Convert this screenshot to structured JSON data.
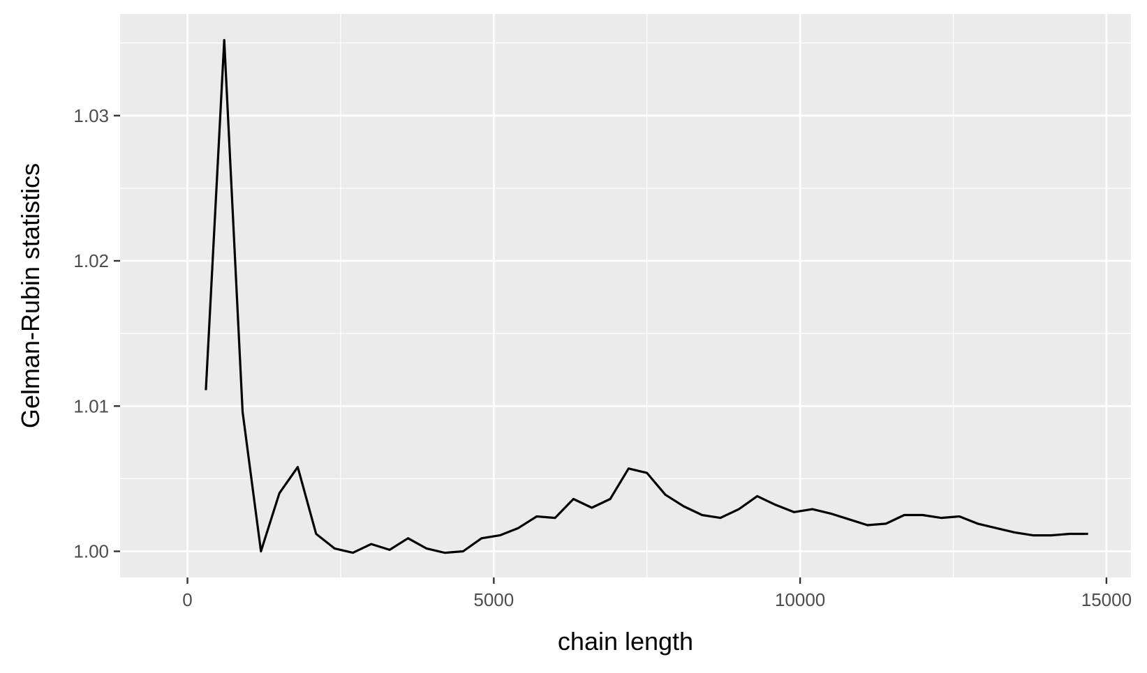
{
  "chart_data": {
    "type": "line",
    "title": "",
    "xlabel": "chain length",
    "ylabel": "Gelman-Rubin statistics",
    "xlim": [
      -1100,
      15400
    ],
    "ylim": [
      0.9982,
      1.037
    ],
    "x_ticks": [
      0,
      5000,
      10000,
      15000
    ],
    "x_tick_labels": [
      "0",
      "5000",
      "10000",
      "15000"
    ],
    "y_ticks": [
      1.0,
      1.01,
      1.02,
      1.03
    ],
    "y_tick_labels": [
      "1.00",
      "1.01",
      "1.02",
      "1.03"
    ],
    "grid": true,
    "legend": "none",
    "colors": {
      "panel": "#ebebeb",
      "grid": "#ffffff",
      "line": "#000000",
      "text": "#4d4d4d"
    },
    "series": [
      {
        "x": [
          300,
          600,
          900,
          1200,
          1500,
          1800,
          2100,
          2400,
          2700,
          3000,
          3300,
          3600,
          3900,
          4200,
          4500,
          4800,
          5100,
          5400,
          5700,
          6000,
          6300,
          6600,
          6900,
          7200,
          7500,
          7800,
          8100,
          8400,
          8700,
          9000,
          9300,
          9600,
          9900,
          10200,
          10500,
          10800,
          11100,
          11400,
          11700,
          12000,
          12300,
          12600,
          12900,
          13200,
          13500,
          13800,
          14100,
          14400,
          14700
        ],
        "y": [
          1.0111,
          1.0352,
          1.0096,
          1.0,
          1.004,
          1.0058,
          1.0012,
          1.0002,
          0.9999,
          1.0005,
          1.0001,
          1.0009,
          1.0002,
          0.9999,
          1.0,
          1.0009,
          1.0011,
          1.0016,
          1.0024,
          1.0023,
          1.0036,
          1.003,
          1.0036,
          1.0057,
          1.0054,
          1.0039,
          1.0031,
          1.0025,
          1.0023,
          1.0029,
          1.0038,
          1.0032,
          1.0027,
          1.0029,
          1.0026,
          1.0022,
          1.0018,
          1.0019,
          1.0025,
          1.0025,
          1.0023,
          1.0024,
          1.0019,
          1.0016,
          1.0013,
          1.0011,
          1.0011,
          1.0012,
          1.0012
        ]
      }
    ]
  }
}
